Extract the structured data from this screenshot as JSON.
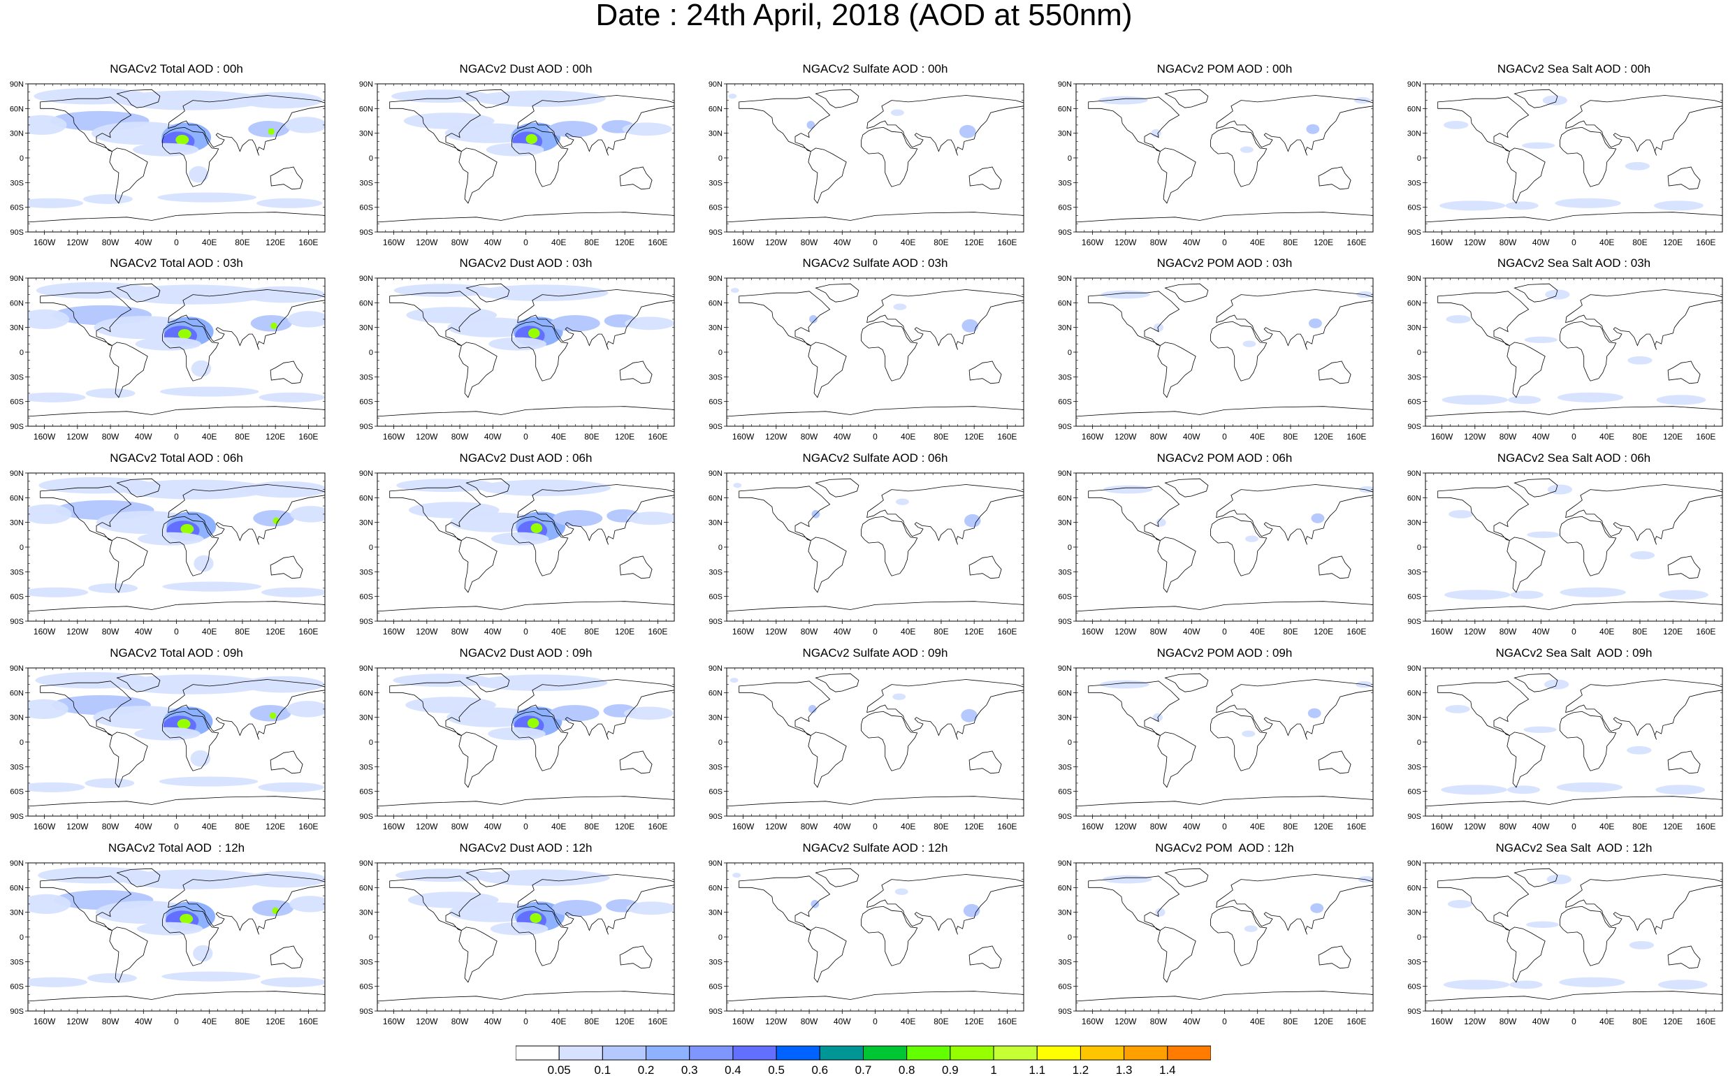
{
  "title": "Date : 24th April, 2018 (AOD at 550nm)",
  "row_titles": [
    [
      "NGACv2 Total AOD : 00h",
      "NGACv2 Dust AOD : 00h",
      "NGACv2 Sulfate AOD : 00h",
      "NGACv2 POM AOD : 00h",
      "NGACv2 Sea Salt AOD : 00h"
    ],
    [
      "NGACv2 Total AOD : 03h",
      "NGACv2 Dust AOD : 03h",
      "NGACv2 Sulfate AOD : 03h",
      "NGACv2 POM AOD : 03h",
      "NGACv2 Sea Salt AOD : 03h"
    ],
    [
      "NGACv2 Total AOD : 06h",
      "NGACv2 Dust AOD : 06h",
      "NGACv2 Sulfate AOD : 06h",
      "NGACv2 POM AOD : 06h",
      "NGACv2 Sea Salt AOD : 06h"
    ],
    [
      "NGACv2 Total AOD : 09h",
      "NGACv2 Dust AOD : 09h",
      "NGACv2 Sulfate AOD : 09h",
      "NGACv2 POM AOD : 09h",
      "NGACv2 Sea Salt  AOD : 09h"
    ],
    [
      "NGACv2 Total AOD  : 12h",
      "NGACv2 Dust AOD : 12h",
      "NGACv2 Sulfate AOD : 12h",
      "NGACv2 POM  AOD : 12h",
      "NGACv2 Sea Salt  AOD : 12h"
    ]
  ],
  "lat_labels": [
    "90N",
    "60N",
    "30N",
    "0",
    "30S",
    "60S",
    "90S"
  ],
  "lon_labels": [
    "160W",
    "120W",
    "80W",
    "40W",
    "0",
    "40E",
    "80E",
    "120E",
    "160E"
  ],
  "colorbar": {
    "labels": [
      "0.05",
      "0.1",
      "0.2",
      "0.3",
      "0.4",
      "0.5",
      "0.6",
      "0.7",
      "0.8",
      "0.9",
      "1",
      "1.1",
      "1.2",
      "1.3",
      "1.4"
    ],
    "colors": [
      "#ffffff",
      "#d6e2ff",
      "#b5c9ff",
      "#8eb2ff",
      "#7f96ff",
      "#6370ff",
      "#0063ff",
      "#009696",
      "#00c633",
      "#63ff00",
      "#96ff00",
      "#c6ff33",
      "#ffff00",
      "#ffc600",
      "#ffa000",
      "#ff7c00",
      "#ff1900"
    ]
  },
  "aerosol_colors": {
    "light": "#d6e2ff",
    "medium": "#b5c9ff",
    "strong": "#8eb2ff",
    "heavy": "#6370ff",
    "peak_green": "#96ff00",
    "peak_teal": "#009696"
  }
}
